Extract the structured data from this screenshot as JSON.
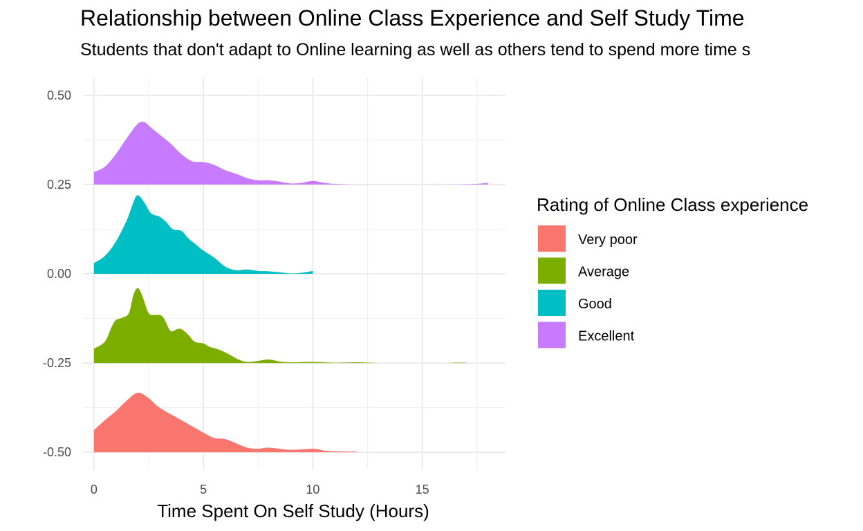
{
  "chart_data": {
    "type": "area",
    "title": "Relationship between Online Class Experience and Self Study Time",
    "subtitle": "Students that don't adapt to Online learning as well as others tend to spend more time s",
    "xlabel": "Time Spent On Self Study (Hours)",
    "ylabel": "",
    "xlim": [
      -0.5,
      18.8
    ],
    "ylim": [
      -0.55,
      0.55
    ],
    "x_ticks": [
      0,
      5,
      10,
      15
    ],
    "x_tick_labels": [
      "0",
      "5",
      "10",
      "15"
    ],
    "y_ticks": [
      0.5,
      0.25,
      0.0,
      -0.25,
      -0.5
    ],
    "y_tick_labels": [
      "0.50",
      "0.25",
      "0.00",
      "-0.25",
      "-0.50"
    ],
    "grid": true,
    "legend": {
      "title": "Rating of Online Class experience",
      "position": "right"
    },
    "series": [
      {
        "name": "Very poor",
        "color": "#F8766D",
        "baseline": -0.5,
        "points": [
          [
            0,
            -0.438
          ],
          [
            0.5,
            -0.41
          ],
          [
            1,
            -0.385
          ],
          [
            1.5,
            -0.355
          ],
          [
            2,
            -0.333
          ],
          [
            2.5,
            -0.348
          ],
          [
            3,
            -0.375
          ],
          [
            4,
            -0.41
          ],
          [
            5,
            -0.445
          ],
          [
            5.5,
            -0.46
          ],
          [
            6,
            -0.463
          ],
          [
            6.5,
            -0.475
          ],
          [
            7,
            -0.487
          ],
          [
            7.5,
            -0.49
          ],
          [
            8,
            -0.487
          ],
          [
            9,
            -0.493
          ],
          [
            10,
            -0.49
          ],
          [
            10.5,
            -0.495
          ],
          [
            11,
            -0.497
          ],
          [
            12,
            -0.498
          ]
        ]
      },
      {
        "name": "Average",
        "color": "#7CAE00",
        "baseline": -0.25,
        "points": [
          [
            0,
            -0.21
          ],
          [
            0.5,
            -0.19
          ],
          [
            0.8,
            -0.15
          ],
          [
            1,
            -0.13
          ],
          [
            1.3,
            -0.123
          ],
          [
            1.6,
            -0.11
          ],
          [
            1.8,
            -0.06
          ],
          [
            2,
            -0.04
          ],
          [
            2.2,
            -0.06
          ],
          [
            2.5,
            -0.11
          ],
          [
            2.8,
            -0.115
          ],
          [
            3,
            -0.115
          ],
          [
            3.2,
            -0.125
          ],
          [
            3.5,
            -0.16
          ],
          [
            3.8,
            -0.155
          ],
          [
            4,
            -0.155
          ],
          [
            4.3,
            -0.17
          ],
          [
            4.6,
            -0.19
          ],
          [
            5,
            -0.195
          ],
          [
            5.3,
            -0.205
          ],
          [
            5.6,
            -0.21
          ],
          [
            6,
            -0.22
          ],
          [
            6.3,
            -0.23
          ],
          [
            6.6,
            -0.24
          ],
          [
            7,
            -0.247
          ],
          [
            7.5,
            -0.244
          ],
          [
            8,
            -0.24
          ],
          [
            8.5,
            -0.246
          ],
          [
            9,
            -0.248
          ],
          [
            10,
            -0.247
          ],
          [
            11,
            -0.249
          ],
          [
            12,
            -0.248
          ],
          [
            13,
            -0.25
          ],
          [
            14,
            -0.25
          ],
          [
            15,
            -0.25
          ],
          [
            16,
            -0.25
          ],
          [
            16.5,
            -0.249
          ],
          [
            17,
            -0.249
          ]
        ]
      },
      {
        "name": "Good",
        "color": "#00BFC4",
        "baseline": 0.0,
        "points": [
          [
            0,
            0.03
          ],
          [
            0.5,
            0.05
          ],
          [
            1,
            0.09
          ],
          [
            1.5,
            0.15
          ],
          [
            1.8,
            0.2
          ],
          [
            2,
            0.22
          ],
          [
            2.3,
            0.2
          ],
          [
            2.6,
            0.17
          ],
          [
            3,
            0.16
          ],
          [
            3.3,
            0.145
          ],
          [
            3.6,
            0.125
          ],
          [
            4,
            0.12
          ],
          [
            4.3,
            0.1
          ],
          [
            4.7,
            0.08
          ],
          [
            5,
            0.065
          ],
          [
            5.5,
            0.045
          ],
          [
            6,
            0.02
          ],
          [
            6.5,
            0.01
          ],
          [
            7,
            0.012
          ],
          [
            7.5,
            0.008
          ],
          [
            8,
            0.007
          ],
          [
            8.5,
            0.004
          ],
          [
            9,
            0.001
          ],
          [
            9.5,
            0.003
          ],
          [
            10,
            0.008
          ]
        ]
      },
      {
        "name": "Excellent",
        "color": "#C77CFF",
        "baseline": 0.25,
        "points": [
          [
            0,
            0.285
          ],
          [
            0.5,
            0.3
          ],
          [
            1,
            0.335
          ],
          [
            1.5,
            0.38
          ],
          [
            2,
            0.42
          ],
          [
            2.3,
            0.425
          ],
          [
            2.6,
            0.41
          ],
          [
            3,
            0.39
          ],
          [
            3.5,
            0.365
          ],
          [
            4,
            0.335
          ],
          [
            4.5,
            0.315
          ],
          [
            5,
            0.313
          ],
          [
            5.5,
            0.305
          ],
          [
            6,
            0.29
          ],
          [
            6.5,
            0.28
          ],
          [
            7,
            0.268
          ],
          [
            7.5,
            0.262
          ],
          [
            8,
            0.262
          ],
          [
            8.5,
            0.258
          ],
          [
            9,
            0.253
          ],
          [
            9.5,
            0.255
          ],
          [
            10,
            0.26
          ],
          [
            10.5,
            0.255
          ],
          [
            11,
            0.252
          ],
          [
            12,
            0.25
          ],
          [
            13,
            0.25
          ],
          [
            14,
            0.25
          ],
          [
            15,
            0.25
          ],
          [
            16,
            0.25
          ],
          [
            17,
            0.251
          ],
          [
            17.5,
            0.252
          ],
          [
            18,
            0.255
          ]
        ]
      }
    ]
  }
}
